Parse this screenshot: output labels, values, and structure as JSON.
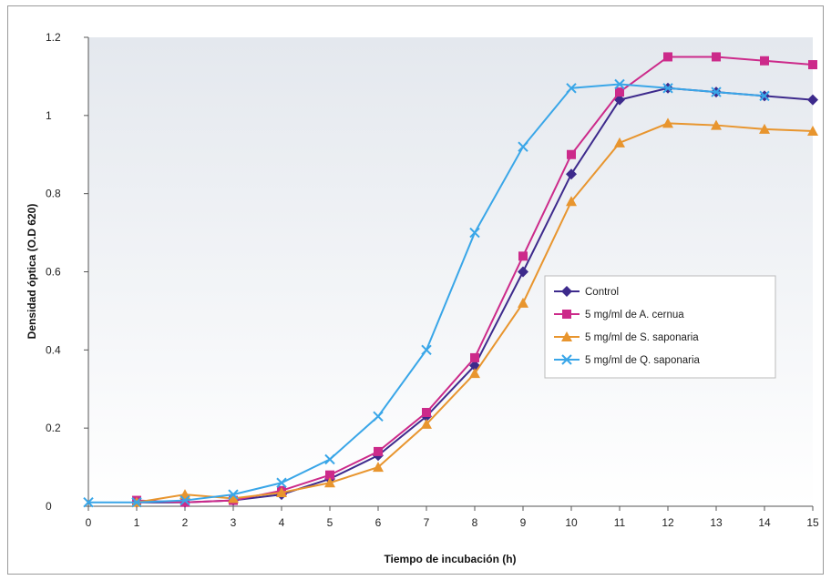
{
  "chart_data": {
    "type": "line",
    "title": "",
    "xlabel": "Tiempo de incubación (h)",
    "ylabel": "Densidad óptica (O.D 620)",
    "x": [
      0,
      1,
      2,
      3,
      4,
      5,
      6,
      7,
      8,
      9,
      10,
      11,
      12,
      13,
      14,
      15
    ],
    "x_ticks": [
      "0",
      "1",
      "2",
      "3",
      "4",
      "5",
      "6",
      "7",
      "8",
      "9",
      "10",
      "11",
      "12",
      "13",
      "14",
      "15"
    ],
    "y_ticks": [
      "0",
      "0.2",
      "0.4",
      "0.6",
      "0.8",
      "1",
      "1.2"
    ],
    "xlim": [
      0,
      15
    ],
    "ylim": [
      0,
      1.2
    ],
    "grid": false,
    "legend_position": "center-right",
    "series": [
      {
        "name": "Control",
        "color": "#3d2a8c",
        "marker": "diamond",
        "x": [
          1,
          2,
          3,
          4,
          5,
          6,
          7,
          8,
          9,
          10,
          11,
          12,
          13,
          14,
          15
        ],
        "values": [
          0.01,
          0.01,
          0.015,
          0.03,
          0.07,
          0.13,
          0.23,
          0.36,
          0.6,
          0.85,
          1.04,
          1.07,
          1.06,
          1.05,
          1.04
        ]
      },
      {
        "name": "5 mg/ml de A. cernua",
        "color": "#cc2a8a",
        "marker": "square",
        "x": [
          1,
          2,
          3,
          4,
          5,
          6,
          7,
          8,
          9,
          10,
          11,
          12,
          13,
          14,
          15
        ],
        "values": [
          0.015,
          0.01,
          0.015,
          0.04,
          0.08,
          0.14,
          0.24,
          0.38,
          0.64,
          0.9,
          1.06,
          1.15,
          1.15,
          1.14,
          1.13
        ]
      },
      {
        "name": "5 mg/ml de S. saponaria",
        "color": "#e8952e",
        "marker": "triangle",
        "x": [
          1,
          2,
          3,
          4,
          5,
          6,
          7,
          8,
          9,
          10,
          11,
          12,
          13,
          14,
          15
        ],
        "values": [
          0.01,
          0.03,
          0.02,
          0.035,
          0.06,
          0.1,
          0.21,
          0.34,
          0.52,
          0.78,
          0.93,
          0.98,
          0.975,
          0.965,
          0.96
        ]
      },
      {
        "name": "5 mg/ml de Q. saponaria",
        "color": "#39a6e8",
        "marker": "x",
        "x": [
          0,
          1,
          2,
          3,
          4,
          5,
          6,
          7,
          8,
          9,
          10,
          11,
          12,
          13,
          14
        ],
        "values": [
          0.01,
          0.01,
          0.015,
          0.03,
          0.06,
          0.12,
          0.23,
          0.4,
          0.7,
          0.92,
          1.07,
          1.08,
          1.07,
          1.06,
          1.05
        ]
      }
    ]
  }
}
